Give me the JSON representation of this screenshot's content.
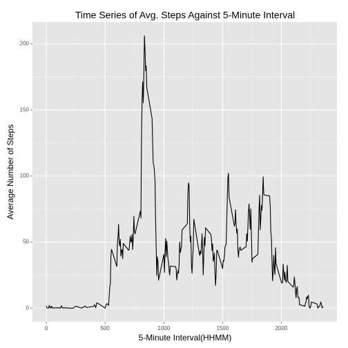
{
  "chart_data": {
    "type": "line",
    "title": "Time Series of Avg. Steps Against 5-Minute Interval",
    "x_label": "5-Minute Interval(HHMM)",
    "y_label": "Average Number of Steps",
    "color": "#000000",
    "x": [
      0,
      5,
      10,
      15,
      20,
      25,
      30,
      35,
      40,
      45,
      50,
      55,
      100,
      110,
      120,
      125,
      130,
      135,
      140,
      150,
      200,
      230,
      250,
      300,
      330,
      340,
      400,
      410,
      420,
      430,
      440,
      450,
      500,
      510,
      520,
      530,
      540,
      545,
      550,
      555,
      600,
      605,
      610,
      615,
      620,
      625,
      630,
      635,
      640,
      645,
      650,
      655,
      700,
      705,
      710,
      715,
      720,
      725,
      730,
      735,
      740,
      745,
      750,
      755,
      800,
      805,
      810,
      815,
      820,
      825,
      830,
      835,
      840,
      845,
      850,
      855,
      900,
      905,
      910,
      915,
      920,
      925,
      930,
      935,
      940,
      945,
      950,
      955,
      1000,
      1005,
      1010,
      1015,
      1020,
      1025,
      1030,
      1035,
      1040,
      1045,
      1050,
      1055,
      1100,
      1105,
      1110,
      1115,
      1120,
      1125,
      1130,
      1135,
      1140,
      1145,
      1150,
      1155,
      1200,
      1205,
      1210,
      1215,
      1220,
      1225,
      1230,
      1235,
      1240,
      1245,
      1250,
      1255,
      1300,
      1305,
      1310,
      1315,
      1320,
      1325,
      1330,
      1335,
      1340,
      1345,
      1350,
      1355,
      1400,
      1405,
      1410,
      1415,
      1420,
      1425,
      1430,
      1435,
      1440,
      1445,
      1450,
      1455,
      1500,
      1505,
      1510,
      1515,
      1520,
      1525,
      1530,
      1535,
      1540,
      1545,
      1550,
      1555,
      1600,
      1605,
      1610,
      1615,
      1620,
      1625,
      1630,
      1635,
      1640,
      1645,
      1650,
      1655,
      1700,
      1705,
      1710,
      1715,
      1720,
      1725,
      1730,
      1735,
      1740,
      1745,
      1750,
      1755,
      1800,
      1805,
      1810,
      1815,
      1820,
      1825,
      1830,
      1835,
      1840,
      1845,
      1850,
      1855,
      1900,
      1905,
      1910,
      1915,
      1920,
      1925,
      1930,
      1935,
      1940,
      1945,
      1950,
      1955,
      2000,
      2005,
      2010,
      2015,
      2020,
      2025,
      2030,
      2035,
      2040,
      2045,
      2050,
      2055,
      2100,
      2105,
      2110,
      2115,
      2120,
      2125,
      2130,
      2135,
      2140,
      2145,
      2150,
      2155,
      2200,
      2205,
      2210,
      2215,
      2220,
      2225,
      2230,
      2235,
      2240,
      2245,
      2250,
      2255,
      2300,
      2305,
      2310,
      2315,
      2320,
      2325,
      2330,
      2335,
      2340,
      2345,
      2350,
      2355
    ],
    "values": [
      1.7,
      0.3,
      0.1,
      0.2,
      0.1,
      2.1,
      0.5,
      0.9,
      0,
      1.5,
      0.3,
      0.1,
      0.3,
      0.2,
      0,
      1.1,
      1.8,
      0.2,
      0.2,
      0.3,
      0,
      0,
      1.5,
      0,
      1.6,
      0.5,
      1.2,
      2.6,
      0.3,
      4.1,
      3.5,
      3.1,
      0,
      3.0,
      3.3,
      2.1,
      16,
      18.3,
      39.5,
      44.5,
      31.5,
      49.3,
      53.8,
      63.5,
      50,
      47.1,
      52.2,
      39.3,
      44,
      44.2,
      37.4,
      49,
      43.8,
      44.4,
      50.5,
      54.5,
      49.9,
      51,
      55.7,
      44.3,
      52.3,
      69.5,
      57.8,
      56.2,
      73.4,
      68.2,
      129.4,
      157.5,
      171.2,
      155.4,
      177.3,
      206.2,
      195.9,
      179.6,
      183.4,
      167,
      143.5,
      124,
      109.1,
      108.1,
      103.7,
      95.9,
      66.2,
      45.2,
      24.8,
      38.8,
      34.98,
      21.1,
      40.6,
      26.98,
      42.4,
      52.7,
      38.9,
      50.8,
      44.3,
      37.4,
      34.7,
      28.3,
      25.1,
      31.9,
      31.4,
      29.7,
      21.3,
      25.5,
      28.4,
      26.5,
      33.4,
      49.98,
      42,
      44.6,
      46,
      59.2,
      63.9,
      87.7,
      94.8,
      92.8,
      63.4,
      50.2,
      54.5,
      32.4,
      26.5,
      37.7,
      45.1,
      67.3,
      42.3,
      39.9,
      43.3,
      40.98,
      46.2,
      56.4,
      42.8,
      25.1,
      39.97,
      53.5,
      47.3,
      60.8,
      55.8,
      51.96,
      43.6,
      48.7,
      35.5,
      37.5,
      41.8,
      27.5,
      17.1,
      26.1,
      43.6,
      43.8,
      30,
      36.1,
      35.5,
      38.8,
      45.96,
      47.8,
      48.1,
      65.3,
      82.9,
      98.7,
      102.1,
      83.96,
      62.1,
      64.1,
      74.5,
      63.2,
      56.9,
      59.8,
      43.9,
      38.6,
      44.7,
      45.5,
      46.2,
      43.7,
      46.6,
      56.3,
      50.7,
      61.2,
      72.7,
      78.9,
      68.9,
      59.7,
      75.1,
      56.5,
      34.8,
      37.5,
      40.7,
      58,
      74.7,
      85.3,
      59.3,
      67.8,
      77.7,
      74.2,
      85.3,
      99.5,
      86.6,
      85.6,
      84.9,
      77.8,
      58,
      53.4,
      36.3,
      20.7,
      27.4,
      40,
      30.2,
      25.5,
      45.7,
      33.5,
      19.6,
      19,
      19.3,
      33.3,
      26.8,
      21.2,
      27.3,
      21.3,
      19.5,
      21.3,
      32.3,
      20.2,
      15.9,
      17.2,
      23.5,
      19.2,
      12.5,
      8,
      14.7,
      16.3,
      8.7,
      7.8,
      8.1,
      2.6,
      1.5,
      3.7,
      4.8,
      8.5,
      7.1,
      8.7,
      9.8,
      2.2,
      0.3,
      0.1,
      1.6,
      4.6,
      3.3,
      2.8,
      0,
      0.8,
      1,
      1.6,
      2.6,
      4.7,
      3.3,
      0.6,
      0.2,
      1.1
    ],
    "xlim": [
      -117.75,
      2472.75
    ],
    "ylim": [
      -10.3,
      216.5
    ],
    "xticks": [
      0,
      500,
      1000,
      1500,
      2000
    ],
    "yticks": [
      0,
      50,
      100,
      150,
      200
    ],
    "minor_xticks": [
      250,
      750,
      1250,
      1750,
      2250
    ],
    "minor_yticks": [
      25,
      75,
      125,
      175
    ],
    "grid": true
  }
}
